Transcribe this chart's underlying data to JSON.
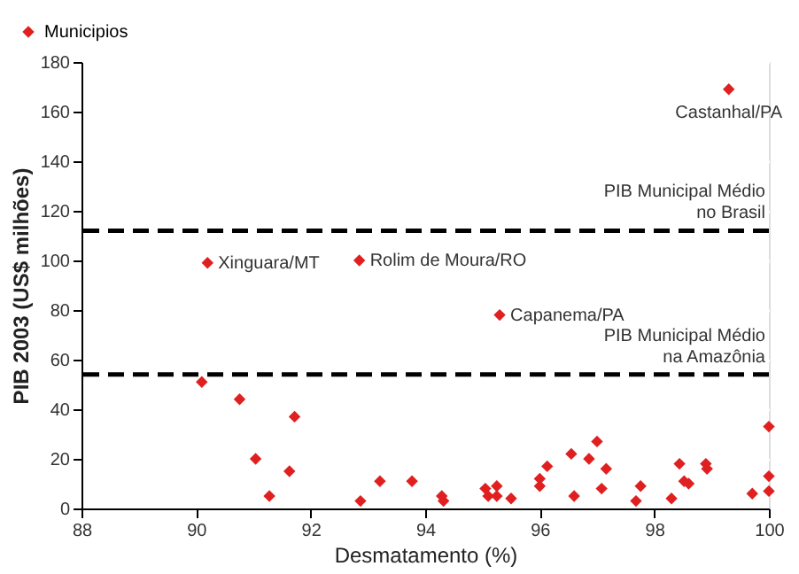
{
  "chart_data": {
    "type": "scatter",
    "xlabel": "Desmatamento (%)",
    "ylabel": "PIB 2003 (US$ milhões)",
    "xlim": [
      88,
      100
    ],
    "xticks": [
      88,
      90,
      92,
      94,
      96,
      98,
      100
    ],
    "ylim": [
      0,
      180
    ],
    "yticks": [
      0,
      20,
      40,
      60,
      80,
      100,
      120,
      140,
      160,
      180
    ],
    "grid": "y",
    "legend": "top left",
    "marker": "diamond",
    "series": [
      {
        "name": "Municipios",
        "color": "#e02020",
        "x": [
          99.3,
          90.2,
          92.85,
          95.3,
          90.1,
          90.76,
          91.72,
          91.04,
          91.63,
          91.28,
          92.87,
          93.21,
          93.77,
          94.29,
          94.32,
          95.05,
          95.25,
          95.25,
          95.1,
          95.5,
          96.0,
          96.0,
          96.13,
          96.55,
          96.6,
          96.86,
          97.0,
          97.16,
          97.08,
          97.76,
          97.68,
          98.3,
          98.44,
          98.52,
          98.6,
          98.9,
          98.92,
          99.71,
          100.0,
          100.0,
          100.0
        ],
        "values": [
          169,
          99,
          100,
          78,
          51,
          44,
          37,
          20,
          15,
          5,
          3,
          11,
          11,
          5,
          3,
          8,
          9,
          5,
          5,
          4,
          12,
          9,
          17,
          22,
          5,
          20,
          27,
          16,
          8,
          9,
          3,
          4,
          18,
          11,
          10,
          18,
          16,
          6,
          33,
          13,
          7
        ]
      }
    ],
    "ref_lines": [
      {
        "axis": "y",
        "value": 112,
        "label": "PIB Municipal Médio no Brasil",
        "color": "#000000",
        "line_style": "dashed"
      },
      {
        "axis": "y",
        "value": 54,
        "label": "PIB Municipal Médio na Amazônia",
        "color": "#000000",
        "line_style": "dashed"
      }
    ],
    "annotations": [
      {
        "text": "Castanhal/PA",
        "x": 99.3,
        "y": 169
      },
      {
        "text": "Xinguara/MT",
        "x": 90.2,
        "y": 99
      },
      {
        "text": "Rolim de Moura/RO",
        "x": 92.85,
        "y": 100
      },
      {
        "text": "Capanema/PA",
        "x": 95.3,
        "y": 78
      }
    ]
  }
}
